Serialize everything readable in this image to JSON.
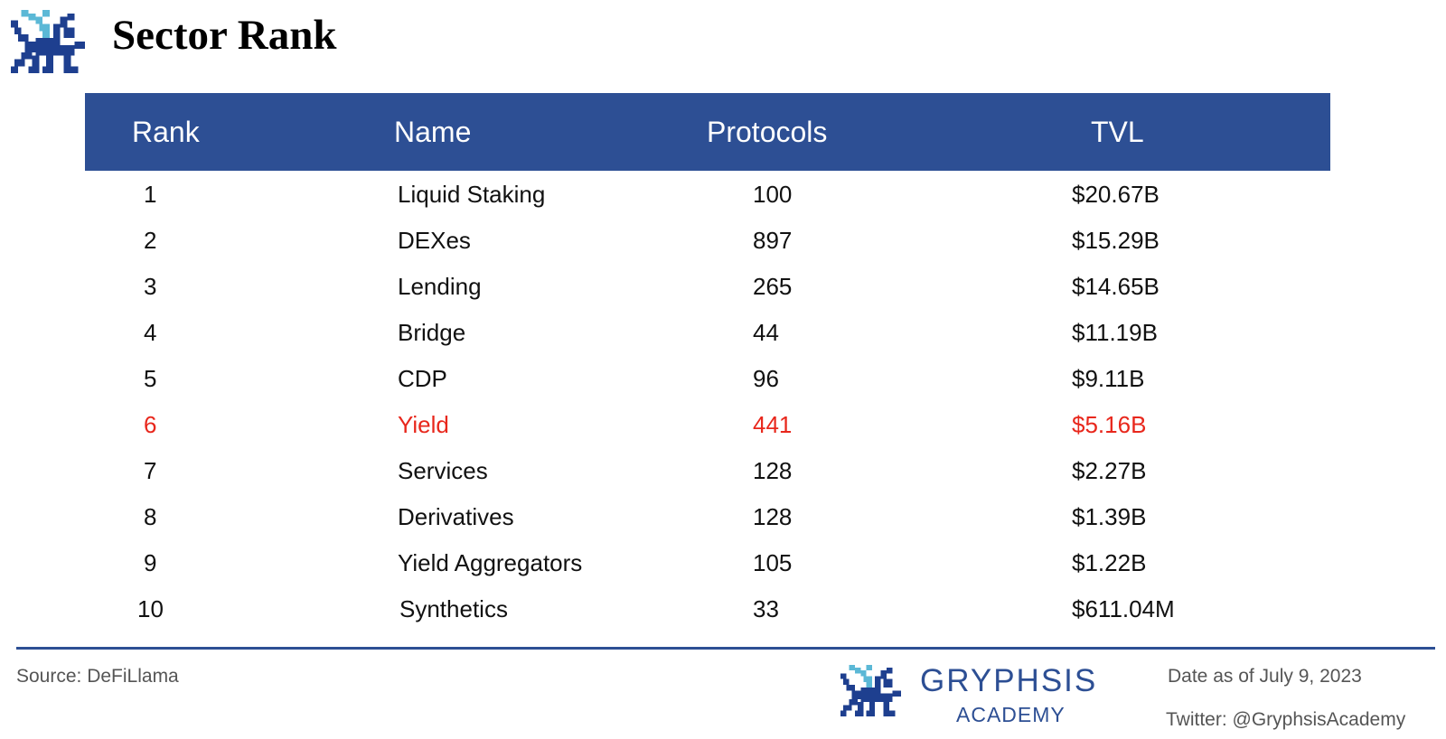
{
  "header": {
    "title": "Sector Rank"
  },
  "chart_data": {
    "type": "table",
    "columns": [
      "Rank",
      "Name",
      "Protocols",
      "TVL"
    ],
    "rows": [
      {
        "rank": "1",
        "name": "Liquid Staking",
        "protocols": "100",
        "tvl": "$20.67B",
        "highlight": false
      },
      {
        "rank": "2",
        "name": "DEXes",
        "protocols": "897",
        "tvl": "$15.29B",
        "highlight": false
      },
      {
        "rank": "3",
        "name": "Lending",
        "protocols": "265",
        "tvl": "$14.65B",
        "highlight": false
      },
      {
        "rank": "4",
        "name": "Bridge",
        "protocols": "44",
        "tvl": "$11.19B",
        "highlight": false
      },
      {
        "rank": "5",
        "name": "CDP",
        "protocols": "96",
        "tvl": "$9.11B",
        "highlight": false
      },
      {
        "rank": "6",
        "name": "Yield",
        "protocols": "441",
        "tvl": "$5.16B",
        "highlight": true
      },
      {
        "rank": "7",
        "name": "Services",
        "protocols": "128",
        "tvl": "$2.27B",
        "highlight": false
      },
      {
        "rank": "8",
        "name": "Derivatives",
        "protocols": "128",
        "tvl": "$1.39B",
        "highlight": false
      },
      {
        "rank": "9",
        "name": "Yield Aggregators",
        "protocols": "105",
        "tvl": "$1.22B",
        "highlight": false
      },
      {
        "rank": "10",
        "name": "Synthetics",
        "protocols": "33",
        "tvl": "$611.04M",
        "highlight": false
      }
    ]
  },
  "footer": {
    "source": "Source: DeFiLlama",
    "brand_name": "GRYPHSIS",
    "brand_sub": "ACADEMY",
    "date": "Date as of July 9, 2023",
    "twitter": "Twitter: @GryphsisAcademy"
  },
  "colors": {
    "header_bg": "#2d4f94",
    "highlight": "#e8271c",
    "logo_dark": "#1e3f8f",
    "logo_light": "#5bb8d6"
  },
  "icons": {
    "logo": "gryphon-pixel-icon"
  }
}
